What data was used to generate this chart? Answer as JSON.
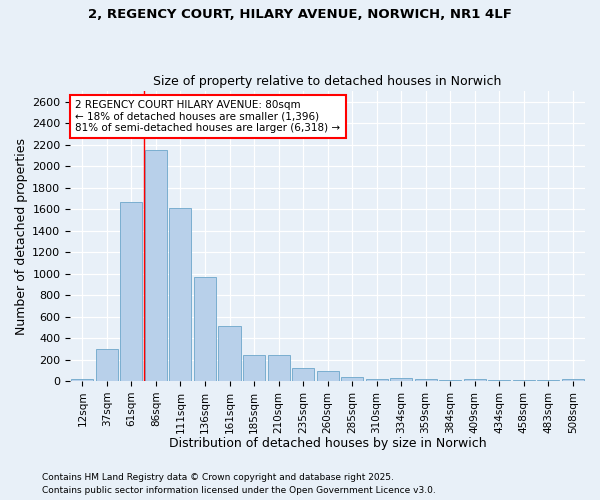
{
  "title": "2, REGENCY COURT, HILARY AVENUE, NORWICH, NR1 4LF",
  "subtitle": "Size of property relative to detached houses in Norwich",
  "xlabel": "Distribution of detached houses by size in Norwich",
  "ylabel": "Number of detached properties",
  "bar_color": "#b8d0ea",
  "bar_edge_color": "#7aaed0",
  "background_color": "#e8f0f8",
  "fig_background_color": "#e8f0f8",
  "grid_color": "#ffffff",
  "categories": [
    "12sqm",
    "37sqm",
    "61sqm",
    "86sqm",
    "111sqm",
    "136sqm",
    "161sqm",
    "185sqm",
    "210sqm",
    "235sqm",
    "260sqm",
    "285sqm",
    "310sqm",
    "334sqm",
    "359sqm",
    "384sqm",
    "409sqm",
    "434sqm",
    "458sqm",
    "483sqm",
    "508sqm"
  ],
  "values": [
    20,
    295,
    1670,
    2150,
    1610,
    970,
    510,
    245,
    245,
    120,
    95,
    38,
    22,
    32,
    18,
    8,
    18,
    8,
    8,
    8,
    18
  ],
  "ylim": [
    0,
    2700
  ],
  "yticks": [
    0,
    200,
    400,
    600,
    800,
    1000,
    1200,
    1400,
    1600,
    1800,
    2000,
    2200,
    2400,
    2600
  ],
  "red_line_x": 2.5,
  "annotation_line1": "2 REGENCY COURT HILARY AVENUE: 80sqm",
  "annotation_line2": "← 18% of detached houses are smaller (1,396)",
  "annotation_line3": "81% of semi-detached houses are larger (6,318) →",
  "footer1": "Contains HM Land Registry data © Crown copyright and database right 2025.",
  "footer2": "Contains public sector information licensed under the Open Government Licence v3.0."
}
